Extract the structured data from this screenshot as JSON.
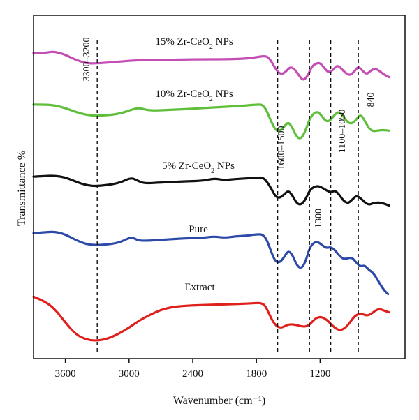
{
  "chart_data": {
    "type": "line",
    "xlabel": "Wavenumber (cm⁻¹)",
    "ylabel": "Transmittance %",
    "x_reversed": true,
    "xlim": [
      3900,
      400
    ],
    "x_ticks": [
      3600,
      3000,
      2400,
      1800,
      1200
    ],
    "x_tick_labels": [
      "3600",
      "3000",
      "2400",
      "1800",
      "1200"
    ],
    "y_ticks_shown": false,
    "grid": false,
    "series": [
      {
        "name": "15% Zr-CeO2 NPs",
        "label": {
          "base": "15% Zr-CeO",
          "sub": "2",
          "suffix": " NPs"
        },
        "color": "#c44fb4",
        "points": [
          [
            3900,
            0.89
          ],
          [
            3800,
            0.89
          ],
          [
            3720,
            0.895
          ],
          [
            3650,
            0.89
          ],
          [
            3600,
            0.885
          ],
          [
            3500,
            0.87
          ],
          [
            3400,
            0.86
          ],
          [
            3300,
            0.86
          ],
          [
            3100,
            0.865
          ],
          [
            2900,
            0.87
          ],
          [
            2700,
            0.87
          ],
          [
            2400,
            0.872
          ],
          [
            2100,
            0.872
          ],
          [
            1900,
            0.874
          ],
          [
            1800,
            0.878
          ],
          [
            1720,
            0.882
          ],
          [
            1680,
            0.876
          ],
          [
            1640,
            0.855
          ],
          [
            1600,
            0.835
          ],
          [
            1560,
            0.828
          ],
          [
            1520,
            0.837
          ],
          [
            1480,
            0.85
          ],
          [
            1440,
            0.843
          ],
          [
            1400,
            0.825
          ],
          [
            1360,
            0.81
          ],
          [
            1320,
            0.822
          ],
          [
            1280,
            0.85
          ],
          [
            1240,
            0.86
          ],
          [
            1200,
            0.862
          ],
          [
            1160,
            0.846
          ],
          [
            1120,
            0.833
          ],
          [
            1080,
            0.84
          ],
          [
            1040,
            0.855
          ],
          [
            1000,
            0.845
          ],
          [
            960,
            0.832
          ],
          [
            920,
            0.825
          ],
          [
            880,
            0.835
          ],
          [
            840,
            0.852
          ],
          [
            800,
            0.838
          ],
          [
            760,
            0.828
          ],
          [
            720,
            0.84
          ],
          [
            680,
            0.845
          ],
          [
            640,
            0.838
          ],
          [
            600,
            0.828
          ],
          [
            550,
            0.82
          ]
        ]
      },
      {
        "name": "10% Zr-CeO2 NPs",
        "label": {
          "base": "10% Zr-CeO",
          "sub": "2",
          "suffix": " NPs"
        },
        "color": "#5fbe3a",
        "points": [
          [
            3900,
            0.74
          ],
          [
            3800,
            0.74
          ],
          [
            3700,
            0.738
          ],
          [
            3600,
            0.73
          ],
          [
            3500,
            0.718
          ],
          [
            3400,
            0.71
          ],
          [
            3300,
            0.707
          ],
          [
            3100,
            0.712
          ],
          [
            2950,
            0.728
          ],
          [
            2900,
            0.73
          ],
          [
            2800,
            0.722
          ],
          [
            2600,
            0.725
          ],
          [
            2400,
            0.728
          ],
          [
            2200,
            0.732
          ],
          [
            2000,
            0.735
          ],
          [
            1800,
            0.74
          ],
          [
            1740,
            0.74
          ],
          [
            1700,
            0.72
          ],
          [
            1660,
            0.69
          ],
          [
            1620,
            0.665
          ],
          [
            1580,
            0.662
          ],
          [
            1540,
            0.675
          ],
          [
            1500,
            0.69
          ],
          [
            1460,
            0.672
          ],
          [
            1420,
            0.645
          ],
          [
            1380,
            0.64
          ],
          [
            1340,
            0.662
          ],
          [
            1300,
            0.698
          ],
          [
            1260,
            0.715
          ],
          [
            1220,
            0.72
          ],
          [
            1180,
            0.705
          ],
          [
            1140,
            0.69
          ],
          [
            1100,
            0.695
          ],
          [
            1060,
            0.712
          ],
          [
            1020,
            0.72
          ],
          [
            980,
            0.705
          ],
          [
            940,
            0.688
          ],
          [
            900,
            0.684
          ],
          [
            860,
            0.696
          ],
          [
            820,
            0.712
          ],
          [
            780,
            0.694
          ],
          [
            740,
            0.67
          ],
          [
            700,
            0.662
          ],
          [
            650,
            0.665
          ],
          [
            600,
            0.666
          ],
          [
            550,
            0.664
          ]
        ]
      },
      {
        "name": "5% Zr-CeO2 NPs",
        "label": {
          "base": "5% Zr-CeO",
          "sub": "2",
          "suffix": " NPs"
        },
        "color": "#111111",
        "points": [
          [
            3900,
            0.53
          ],
          [
            3800,
            0.532
          ],
          [
            3700,
            0.533
          ],
          [
            3600,
            0.528
          ],
          [
            3500,
            0.515
          ],
          [
            3400,
            0.505
          ],
          [
            3300,
            0.502
          ],
          [
            3100,
            0.51
          ],
          [
            2980,
            0.528
          ],
          [
            2920,
            0.518
          ],
          [
            2850,
            0.51
          ],
          [
            2700,
            0.513
          ],
          [
            2500,
            0.516
          ],
          [
            2300,
            0.518
          ],
          [
            2200,
            0.525
          ],
          [
            2100,
            0.52
          ],
          [
            2000,
            0.523
          ],
          [
            1900,
            0.525
          ],
          [
            1800,
            0.527
          ],
          [
            1740,
            0.528
          ],
          [
            1700,
            0.515
          ],
          [
            1660,
            0.495
          ],
          [
            1620,
            0.472
          ],
          [
            1580,
            0.468
          ],
          [
            1540,
            0.478
          ],
          [
            1500,
            0.49
          ],
          [
            1460,
            0.475
          ],
          [
            1420,
            0.452
          ],
          [
            1380,
            0.448
          ],
          [
            1340,
            0.462
          ],
          [
            1300,
            0.49
          ],
          [
            1260,
            0.5
          ],
          [
            1220,
            0.503
          ],
          [
            1180,
            0.498
          ],
          [
            1140,
            0.49
          ],
          [
            1100,
            0.484
          ],
          [
            1060,
            0.49
          ],
          [
            1020,
            0.478
          ],
          [
            980,
            0.46
          ],
          [
            940,
            0.452
          ],
          [
            900,
            0.462
          ],
          [
            860,
            0.475
          ],
          [
            820,
            0.468
          ],
          [
            780,
            0.455
          ],
          [
            740,
            0.448
          ],
          [
            700,
            0.453
          ],
          [
            650,
            0.455
          ],
          [
            600,
            0.452
          ],
          [
            550,
            0.446
          ]
        ]
      },
      {
        "name": "Pure",
        "label": {
          "base": "Pure",
          "sub": "",
          "suffix": ""
        },
        "color": "#2d4aa8",
        "points": [
          [
            3900,
            0.365
          ],
          [
            3800,
            0.368
          ],
          [
            3700,
            0.37
          ],
          [
            3600,
            0.362
          ],
          [
            3500,
            0.345
          ],
          [
            3400,
            0.333
          ],
          [
            3300,
            0.33
          ],
          [
            3100,
            0.336
          ],
          [
            2980,
            0.355
          ],
          [
            2920,
            0.345
          ],
          [
            2850,
            0.343
          ],
          [
            2700,
            0.346
          ],
          [
            2500,
            0.35
          ],
          [
            2300,
            0.352
          ],
          [
            2200,
            0.356
          ],
          [
            2100,
            0.352
          ],
          [
            2000,
            0.356
          ],
          [
            1900,
            0.358
          ],
          [
            1800,
            0.362
          ],
          [
            1740,
            0.362
          ],
          [
            1700,
            0.345
          ],
          [
            1660,
            0.31
          ],
          [
            1620,
            0.282
          ],
          [
            1580,
            0.28
          ],
          [
            1540,
            0.295
          ],
          [
            1500,
            0.315
          ],
          [
            1460,
            0.302
          ],
          [
            1420,
            0.272
          ],
          [
            1380,
            0.262
          ],
          [
            1340,
            0.28
          ],
          [
            1300,
            0.322
          ],
          [
            1260,
            0.338
          ],
          [
            1220,
            0.34
          ],
          [
            1180,
            0.33
          ],
          [
            1140,
            0.322
          ],
          [
            1100,
            0.325
          ],
          [
            1060,
            0.316
          ],
          [
            1020,
            0.3
          ],
          [
            980,
            0.29
          ],
          [
            940,
            0.292
          ],
          [
            900,
            0.295
          ],
          [
            860,
            0.28
          ],
          [
            820,
            0.268
          ],
          [
            780,
            0.272
          ],
          [
            740,
            0.258
          ],
          [
            700,
            0.25
          ],
          [
            650,
            0.225
          ],
          [
            600,
            0.2
          ],
          [
            560,
            0.188
          ]
        ]
      },
      {
        "name": "Extract",
        "label": {
          "base": "Extract",
          "sub": "",
          "suffix": ""
        },
        "color": "#e0201c",
        "points": [
          [
            3900,
            0.18
          ],
          [
            3800,
            0.168
          ],
          [
            3700,
            0.145
          ],
          [
            3600,
            0.105
          ],
          [
            3500,
            0.07
          ],
          [
            3400,
            0.055
          ],
          [
            3300,
            0.052
          ],
          [
            3200,
            0.058
          ],
          [
            3100,
            0.072
          ],
          [
            3000,
            0.09
          ],
          [
            2900,
            0.112
          ],
          [
            2800,
            0.128
          ],
          [
            2700,
            0.142
          ],
          [
            2600,
            0.15
          ],
          [
            2500,
            0.153
          ],
          [
            2400,
            0.155
          ],
          [
            2300,
            0.156
          ],
          [
            2200,
            0.157
          ],
          [
            2100,
            0.158
          ],
          [
            2000,
            0.159
          ],
          [
            1900,
            0.16
          ],
          [
            1800,
            0.162
          ],
          [
            1760,
            0.162
          ],
          [
            1720,
            0.156
          ],
          [
            1680,
            0.13
          ],
          [
            1640,
            0.105
          ],
          [
            1600,
            0.092
          ],
          [
            1560,
            0.09
          ],
          [
            1520,
            0.097
          ],
          [
            1480,
            0.1
          ],
          [
            1440,
            0.099
          ],
          [
            1400,
            0.096
          ],
          [
            1360,
            0.093
          ],
          [
            1320,
            0.095
          ],
          [
            1280,
            0.105
          ],
          [
            1240,
            0.118
          ],
          [
            1200,
            0.122
          ],
          [
            1160,
            0.118
          ],
          [
            1120,
            0.108
          ],
          [
            1080,
            0.095
          ],
          [
            1040,
            0.085
          ],
          [
            1000,
            0.083
          ],
          [
            960,
            0.09
          ],
          [
            920,
            0.105
          ],
          [
            880,
            0.122
          ],
          [
            840,
            0.13
          ],
          [
            800,
            0.13
          ],
          [
            760,
            0.125
          ],
          [
            720,
            0.13
          ],
          [
            680,
            0.14
          ],
          [
            640,
            0.145
          ],
          [
            600,
            0.14
          ],
          [
            550,
            0.135
          ]
        ]
      }
    ],
    "reference_lines": [
      {
        "x": 3300,
        "label": "3300–3200"
      },
      {
        "x": 1600,
        "label": "1600–1500"
      },
      {
        "x": 1300,
        "label": "1300"
      },
      {
        "x": 1100,
        "label": "1100–1050"
      },
      {
        "x": 840,
        "label": "840"
      }
    ]
  }
}
